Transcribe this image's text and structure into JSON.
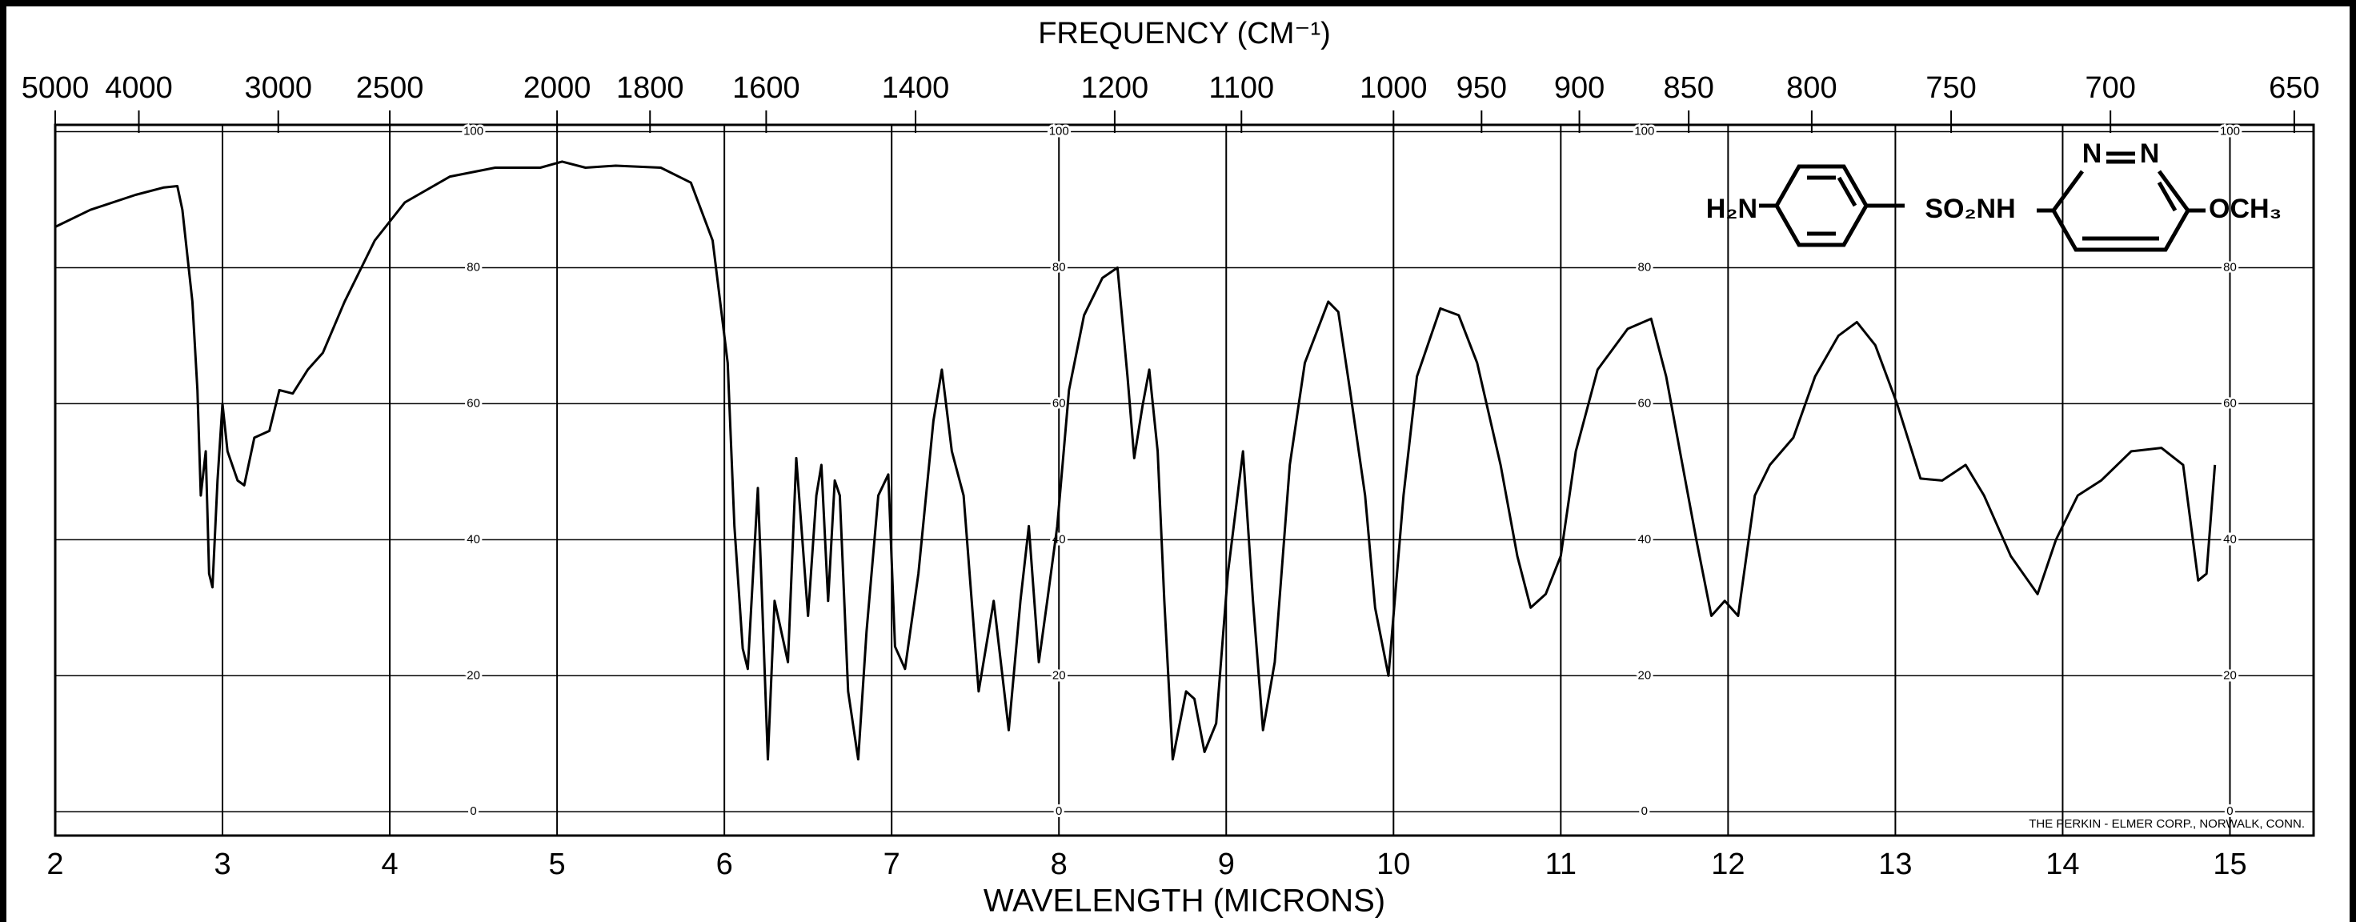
{
  "chart_data": {
    "type": "line",
    "x2label": "FREQUENCY (CM⁻¹)",
    "xlabel": "WAVELENGTH (MICRONS)",
    "xlim": [
      2,
      15.5
    ],
    "xticks": [
      2,
      3,
      4,
      5,
      6,
      7,
      8,
      9,
      10,
      11,
      12,
      13,
      14,
      15
    ],
    "x2ticks": [
      5000,
      4000,
      3000,
      2500,
      2000,
      1800,
      1600,
      1400,
      1200,
      1100,
      1000,
      950,
      900,
      850,
      800,
      750,
      700,
      650
    ],
    "ylim": [
      -3.5,
      101
    ],
    "yticks": [
      0,
      20,
      40,
      60,
      80,
      100
    ],
    "grid": true,
    "x": [
      2,
      2.21,
      2.48,
      2.65,
      2.73,
      2.76,
      2.82,
      2.85,
      2.87,
      2.9,
      2.92,
      2.94,
      2.97,
      3.0,
      3.03,
      3.09,
      3.13,
      3.19,
      3.28,
      3.34,
      3.42,
      3.51,
      3.6,
      3.73,
      3.91,
      4.09,
      4.36,
      4.63,
      4.9,
      5.03,
      5.17,
      5.35,
      5.62,
      5.8,
      5.93,
      6.02,
      6.06,
      6.11,
      6.14,
      6.2,
      6.22,
      6.26,
      6.3,
      6.33,
      6.38,
      6.43,
      6.5,
      6.55,
      6.58,
      6.62,
      6.66,
      6.69,
      6.74,
      6.8,
      6.85,
      6.92,
      6.98,
      7.02,
      7.08,
      7.16,
      7.25,
      7.3,
      7.36,
      7.43,
      7.52,
      7.61,
      7.7,
      7.77,
      7.82,
      7.88,
      7.93,
      7.99,
      8.06,
      8.15,
      8.26,
      8.35,
      8.41,
      8.45,
      8.5,
      8.54,
      8.59,
      8.63,
      8.68,
      8.76,
      8.81,
      8.87,
      8.94,
      9.01,
      9.1,
      9.16,
      9.22,
      9.29,
      9.38,
      9.47,
      9.61,
      9.67,
      9.74,
      9.83,
      9.89,
      9.97,
      10.06,
      10.14,
      10.28,
      10.39,
      10.5,
      10.64,
      10.74,
      10.82,
      10.91,
      11.0,
      11.09,
      11.22,
      11.4,
      11.54,
      11.63,
      11.72,
      11.81,
      11.9,
      11.98,
      12.06,
      12.16,
      12.25,
      12.39,
      12.52,
      12.66,
      12.77,
      12.88,
      13.01,
      13.15,
      13.28,
      13.42,
      13.53,
      13.69,
      13.85,
      13.96,
      14.09,
      14.23,
      14.41,
      14.59,
      14.72,
      14.81,
      14.86,
      14.91
    ],
    "series": [
      {
        "color": "#000000",
        "values": [
          86,
          88.5,
          90.7,
          91.8,
          92,
          88.5,
          75,
          62,
          46.5,
          53,
          35,
          33,
          48.7,
          60,
          53,
          48.7,
          48,
          55,
          56,
          62,
          61.5,
          65,
          67.5,
          75,
          84,
          89.6,
          93.4,
          94.7,
          94.7,
          95.6,
          94.7,
          95,
          94.7,
          92.5,
          84,
          66,
          42,
          24,
          21,
          47.6,
          35,
          7.7,
          31,
          27.7,
          22,
          52,
          28.8,
          46.5,
          51,
          31,
          48.7,
          46.5,
          17.7,
          7.7,
          26.5,
          46.5,
          49.6,
          24.3,
          21,
          35,
          57.5,
          65,
          53,
          46.5,
          17.7,
          31,
          12,
          31,
          42,
          22,
          31,
          42,
          62,
          73,
          78.5,
          80,
          64,
          52,
          59.7,
          65,
          53,
          31,
          7.7,
          17.7,
          16.6,
          8.8,
          13,
          35,
          53,
          31,
          12,
          22,
          51,
          66,
          75,
          73.5,
          62,
          46.5,
          30,
          20,
          46.5,
          64,
          74,
          73,
          66,
          51,
          37.6,
          30,
          32,
          37.6,
          53,
          65,
          71,
          72.5,
          64,
          52,
          40,
          28.8,
          31,
          28.8,
          46.5,
          51,
          55,
          64,
          70,
          72,
          68.6,
          60,
          49,
          48.7,
          51,
          46.5,
          37.6,
          32,
          40,
          46.5,
          48.7,
          53,
          53.5,
          51,
          34,
          35,
          51
        ]
      }
    ],
    "structure_labels": [
      "H₂N",
      "SO₂NH",
      "N",
      "N",
      "OCH₃"
    ],
    "credit": "THE PERKIN - ELMER CORP., NORWALK, CONN."
  }
}
